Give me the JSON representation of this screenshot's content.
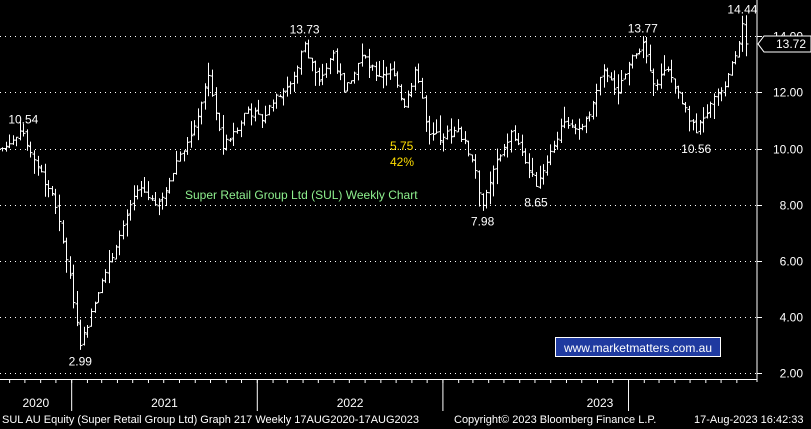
{
  "chart_data": {
    "type": "ohlc",
    "title": "Super Retail Group Ltd (SUL) Weekly Chart",
    "y_ticks": [
      "2.00",
      "4.00",
      "6.00",
      "8.00",
      "10.00",
      "12.00",
      "14.00"
    ],
    "ylim": [
      1.8,
      15.0
    ],
    "x_labels": [
      "2020",
      "2021",
      "2022",
      "2023"
    ],
    "last_price": "13.72",
    "grid": true,
    "keypoints": [
      {
        "date": "2020-08-17",
        "close": 10.0
      },
      {
        "date": "2020-09-07",
        "close": 10.3
      },
      {
        "date": "2020-09-28",
        "close": 10.54
      },
      {
        "date": "2020-10-19",
        "close": 9.6
      },
      {
        "date": "2020-11-23",
        "close": 8.4
      },
      {
        "date": "2020-12-28",
        "close": 5.5
      },
      {
        "date": "2021-01-18",
        "close": 2.99
      },
      {
        "date": "2021-02-08",
        "close": 4.2
      },
      {
        "date": "2021-03-01",
        "close": 5.3
      },
      {
        "date": "2021-03-29",
        "close": 6.5
      },
      {
        "date": "2021-04-26",
        "close": 8.0
      },
      {
        "date": "2021-05-17",
        "close": 8.6
      },
      {
        "date": "2021-06-14",
        "close": 8.0
      },
      {
        "date": "2021-07-05",
        "close": 8.5
      },
      {
        "date": "2021-08-02",
        "close": 9.8
      },
      {
        "date": "2021-08-30",
        "close": 10.8
      },
      {
        "date": "2021-09-27",
        "close": 12.6
      },
      {
        "date": "2021-10-25",
        "close": 10.0
      },
      {
        "date": "2021-11-15",
        "close": 10.6
      },
      {
        "date": "2021-12-13",
        "close": 11.4
      },
      {
        "date": "2022-01-10",
        "close": 11.0
      },
      {
        "date": "2022-02-07",
        "close": 11.9
      },
      {
        "date": "2022-03-07",
        "close": 12.3
      },
      {
        "date": "2022-04-04",
        "close": 13.73
      },
      {
        "date": "2022-05-02",
        "close": 12.4
      },
      {
        "date": "2022-05-30",
        "close": 13.4
      },
      {
        "date": "2022-06-20",
        "close": 12.0
      },
      {
        "date": "2022-07-25",
        "close": 13.3
      },
      {
        "date": "2022-08-22",
        "close": 12.6
      },
      {
        "date": "2022-09-19",
        "close": 12.8
      },
      {
        "date": "2022-10-17",
        "close": 11.5
      },
      {
        "date": "2022-11-07",
        "close": 12.8
      },
      {
        "date": "2022-12-05",
        "close": 10.5
      },
      {
        "date": "2023-01-02",
        "close": 10.4
      },
      {
        "date": "2023-01-30",
        "close": 10.7
      },
      {
        "date": "2023-02-27",
        "close": 9.6
      },
      {
        "date": "2023-03-20",
        "close": 7.98
      },
      {
        "date": "2023-04-17",
        "close": 9.6
      },
      {
        "date": "2023-05-15",
        "close": 10.6
      },
      {
        "date": "2023-06-12",
        "close": 9.5
      },
      {
        "date": "2023-07-03",
        "close": 8.65
      },
      {
        "date": "2023-07-31",
        "close": 9.9
      },
      {
        "date": "2023-08-21",
        "close": 10.8
      },
      {
        "date": "2023-09-18",
        "close": 10.7
      },
      {
        "date": "2023-10-16",
        "close": 11.2
      },
      {
        "date": "2023-11-13",
        "close": 12.8
      },
      {
        "date": "2023-12-11",
        "close": 12.0
      },
      {
        "date": "2024-01-08",
        "close": 13.3
      },
      {
        "date": "2024-01-29",
        "close": 13.77
      },
      {
        "date": "2024-02-19",
        "close": 12.3
      },
      {
        "date": "2024-03-18",
        "close": 12.8
      },
      {
        "date": "2024-04-15",
        "close": 11.6
      },
      {
        "date": "2024-05-13",
        "close": 10.56
      },
      {
        "date": "2024-06-10",
        "close": 11.6
      },
      {
        "date": "2024-07-08",
        "close": 12.2
      },
      {
        "date": "2024-07-29",
        "close": 13.3
      },
      {
        "date": "2024-08-12",
        "close": 14.44
      },
      {
        "date": "2024-08-19",
        "close": 13.72
      }
    ],
    "annotations": [
      {
        "text": "10.54",
        "date": "2020-09-28",
        "value": 10.54,
        "pos": "above"
      },
      {
        "text": "2.99",
        "date": "2021-01-18",
        "value": 2.99,
        "pos": "below"
      },
      {
        "text": "13.73",
        "date": "2022-04-04",
        "value": 13.73,
        "pos": "above"
      },
      {
        "text": "7.98",
        "date": "2023-03-20",
        "value": 7.98,
        "pos": "below"
      },
      {
        "text": "8.65",
        "date": "2023-07-03",
        "value": 8.65,
        "pos": "below"
      },
      {
        "text": "13.77",
        "date": "2024-01-29",
        "value": 13.77,
        "pos": "above"
      },
      {
        "text": "10.56",
        "date": "2024-05-13",
        "value": 10.56,
        "pos": "below"
      },
      {
        "text": "14.44",
        "date": "2024-08-12",
        "value": 14.44,
        "pos": "above"
      }
    ],
    "callout": {
      "line1": "5.75",
      "line2": "42%"
    }
  },
  "watermark": "www.marketmatters.com.au",
  "footer": {
    "left": "SUL AU Equity (Super Retail Group Ltd) Graph 217  Weekly 17AUG2020-17AUG2023",
    "mid": "Copyright© 2023 Bloomberg Finance L.P.",
    "right": "17-Aug-2023 16:42:33"
  },
  "colors": {
    "bars": "#ffffff",
    "grid": "#ffffff",
    "background": "#000000",
    "title": "#8ef08e",
    "callout": "#ffde00",
    "watermark_bg": "#1f3aa0"
  }
}
